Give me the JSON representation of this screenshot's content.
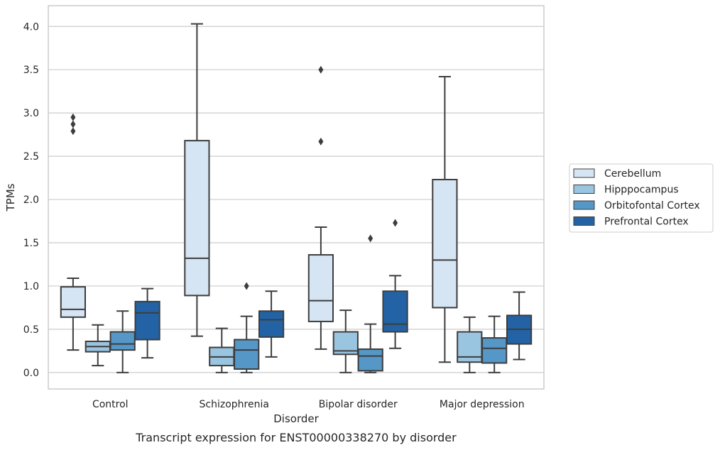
{
  "caption": "Transcript expression for ENST00000338270 by disorder",
  "chart_data": {
    "type": "box",
    "title": "",
    "xlabel": "Disorder",
    "ylabel": "TPMs",
    "ylim": [
      -0.19,
      4.24
    ],
    "yticks": [
      0.0,
      0.5,
      1.0,
      1.5,
      2.0,
      2.5,
      3.0,
      3.5,
      4.0
    ],
    "ytick_labels": [
      "0.0",
      "0.5",
      "1.0",
      "1.5",
      "2.0",
      "2.5",
      "3.0",
      "3.5",
      "4.0"
    ],
    "grid": true,
    "legend_position": "right-center",
    "categories": [
      "Control",
      "Schizophrenia",
      "Bipolar disorder",
      "Major depression"
    ],
    "series": [
      {
        "name": "Cerebellum",
        "color": "#d6e5f3",
        "boxes": [
          {
            "whislo": 0.26,
            "q1": 0.64,
            "med": 0.73,
            "q3": 0.99,
            "whishi": 1.09,
            "fliers": [
              2.79,
              2.87,
              2.95
            ]
          },
          {
            "whislo": 0.42,
            "q1": 0.89,
            "med": 1.32,
            "q3": 2.68,
            "whishi": 4.03,
            "fliers": []
          },
          {
            "whislo": 0.27,
            "q1": 0.59,
            "med": 0.83,
            "q3": 1.36,
            "whishi": 1.68,
            "fliers": [
              2.67,
              3.5
            ]
          },
          {
            "whislo": 0.12,
            "q1": 0.75,
            "med": 1.3,
            "q3": 2.23,
            "whishi": 3.42,
            "fliers": []
          }
        ]
      },
      {
        "name": "Hipppocampus",
        "color": "#9ac5e0",
        "boxes": [
          {
            "whislo": 0.08,
            "q1": 0.24,
            "med": 0.3,
            "q3": 0.36,
            "whishi": 0.55,
            "fliers": []
          },
          {
            "whislo": 0.0,
            "q1": 0.08,
            "med": 0.18,
            "q3": 0.29,
            "whishi": 0.51,
            "fliers": []
          },
          {
            "whislo": 0.0,
            "q1": 0.21,
            "med": 0.25,
            "q3": 0.47,
            "whishi": 0.72,
            "fliers": []
          },
          {
            "whislo": 0.0,
            "q1": 0.12,
            "med": 0.18,
            "q3": 0.47,
            "whishi": 0.64,
            "fliers": []
          }
        ]
      },
      {
        "name": "Orbitofontal Cortex",
        "color": "#5597c6",
        "boxes": [
          {
            "whislo": 0.0,
            "q1": 0.26,
            "med": 0.33,
            "q3": 0.47,
            "whishi": 0.71,
            "fliers": []
          },
          {
            "whislo": 0.0,
            "q1": 0.04,
            "med": 0.26,
            "q3": 0.38,
            "whishi": 0.65,
            "fliers": [
              1.0
            ]
          },
          {
            "whislo": 0.0,
            "q1": 0.02,
            "med": 0.19,
            "q3": 0.27,
            "whishi": 0.56,
            "fliers": [
              1.55
            ]
          },
          {
            "whislo": 0.0,
            "q1": 0.11,
            "med": 0.28,
            "q3": 0.4,
            "whishi": 0.65,
            "fliers": []
          }
        ]
      },
      {
        "name": "Prefrontal Cortex",
        "color": "#2363a5",
        "boxes": [
          {
            "whislo": 0.17,
            "q1": 0.38,
            "med": 0.69,
            "q3": 0.82,
            "whishi": 0.97,
            "fliers": []
          },
          {
            "whislo": 0.18,
            "q1": 0.41,
            "med": 0.61,
            "q3": 0.71,
            "whishi": 0.94,
            "fliers": []
          },
          {
            "whislo": 0.28,
            "q1": 0.47,
            "med": 0.56,
            "q3": 0.94,
            "whishi": 1.12,
            "fliers": [
              1.73
            ]
          },
          {
            "whislo": 0.15,
            "q1": 0.33,
            "med": 0.5,
            "q3": 0.66,
            "whishi": 0.93,
            "fliers": []
          }
        ]
      }
    ]
  }
}
